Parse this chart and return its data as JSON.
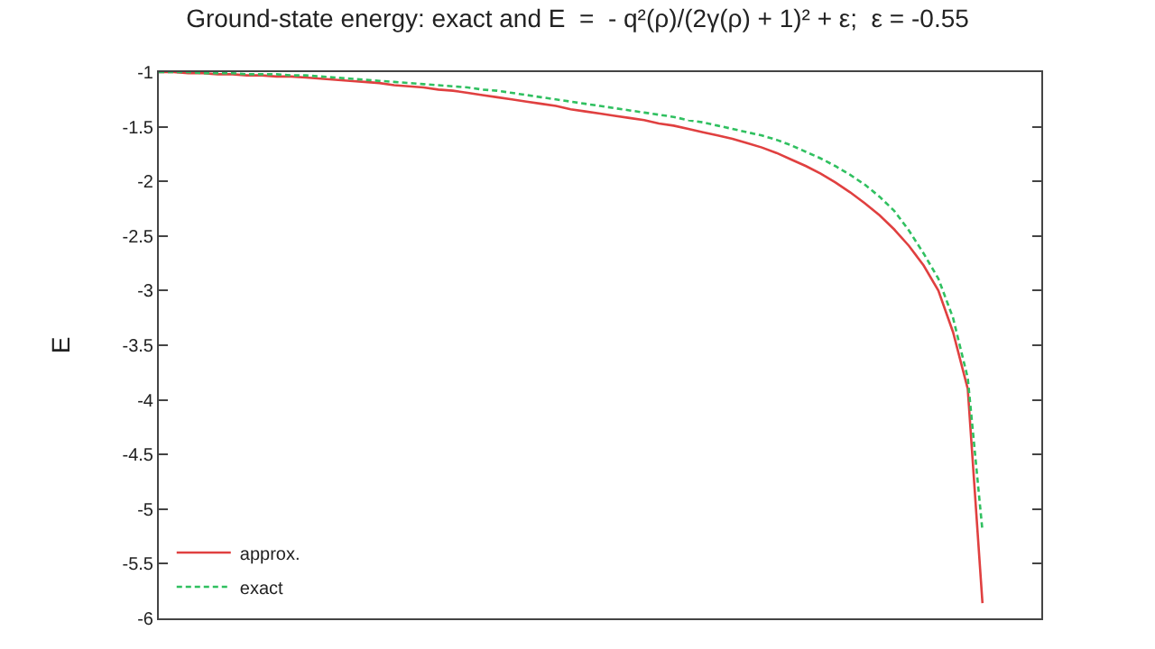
{
  "chart_data": {
    "type": "line",
    "title": "Ground-state energy: exact and E  =  - q²(ρ)/(2γ(ρ) + 1)² + ε;  ε = -0.55",
    "ylabel": "E",
    "categories": [
      null,
      null,
      null,
      null,
      null,
      null,
      null,
      null,
      null,
      null,
      null,
      null,
      null,
      null,
      null,
      null,
      null,
      null,
      null,
      null,
      null,
      null,
      null,
      null,
      null,
      null,
      null,
      null,
      null,
      null,
      null,
      null,
      null,
      null,
      null,
      null,
      null,
      null,
      null,
      null,
      null,
      null,
      null,
      null,
      null,
      null,
      null,
      null,
      null,
      null,
      null,
      null,
      null,
      null,
      null,
      null,
      null,
      null,
      null,
      null,
      null
    ],
    "ylim": [
      -6,
      -1
    ],
    "yticks": [
      -6,
      -5.5,
      -5,
      -4.5,
      -4,
      -3.5,
      -3,
      -2.5,
      -2,
      -1.5,
      -1
    ],
    "tick_labels": "y",
    "legend": "bottom left",
    "marker": "none",
    "series": [
      {
        "name": "approx.",
        "color": "#e04040",
        "line_style": "solid",
        "values": [
          -1.0,
          -1.0,
          -1.01,
          -1.01,
          -1.02,
          -1.02,
          -1.03,
          -1.03,
          -1.04,
          -1.04,
          -1.05,
          -1.06,
          -1.07,
          -1.08,
          -1.09,
          -1.1,
          -1.12,
          -1.13,
          -1.14,
          -1.16,
          -1.17,
          -1.19,
          -1.21,
          -1.23,
          -1.25,
          -1.27,
          -1.29,
          -1.31,
          -1.34,
          -1.36,
          -1.38,
          -1.4,
          -1.42,
          -1.44,
          -1.47,
          -1.49,
          -1.52,
          -1.55,
          -1.58,
          -1.61,
          -1.65,
          -1.69,
          -1.74,
          -1.8,
          -1.86,
          -1.93,
          -2.01,
          -2.1,
          -2.2,
          -2.31,
          -2.44,
          -2.59,
          -2.77,
          -3.0,
          -3.38,
          -3.9,
          -5.86,
          null,
          null,
          null,
          null
        ]
      },
      {
        "name": "exact",
        "color": "#30c060",
        "line_style": "dashed",
        "values": [
          -1.0,
          -1.0,
          -1.0,
          -1.01,
          -1.01,
          -1.01,
          -1.02,
          -1.02,
          -1.02,
          -1.03,
          -1.03,
          -1.04,
          -1.05,
          -1.06,
          -1.07,
          -1.08,
          -1.09,
          -1.1,
          -1.11,
          -1.12,
          -1.13,
          -1.14,
          -1.16,
          -1.17,
          -1.19,
          -1.21,
          -1.23,
          -1.25,
          -1.27,
          -1.29,
          -1.31,
          -1.33,
          -1.35,
          -1.37,
          -1.39,
          -1.41,
          -1.44,
          -1.46,
          -1.49,
          -1.52,
          -1.55,
          -1.58,
          -1.62,
          -1.67,
          -1.73,
          -1.79,
          -1.86,
          -1.94,
          -2.03,
          -2.14,
          -2.27,
          -2.45,
          -2.66,
          -2.89,
          -3.25,
          -3.8,
          -5.2,
          null,
          null,
          null,
          null
        ]
      }
    ]
  }
}
